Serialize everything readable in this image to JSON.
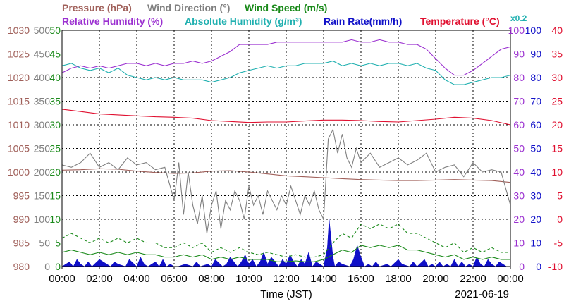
{
  "chart_data": {
    "type": "line",
    "date": "2021-06-19",
    "xlabel": "Time (JST)",
    "x_ticks": [
      "00:00",
      "02:00",
      "04:00",
      "06:00",
      "08:00",
      "10:00",
      "12:00",
      "14:00",
      "16:00",
      "18:00",
      "20:00",
      "22:00",
      "00:00"
    ],
    "x_range_hours": [
      0,
      24
    ],
    "grid": true,
    "header": {
      "row1": [
        {
          "text": "Pressure (hPa)",
          "color": "#a0605a"
        },
        {
          "text": "Wind Direction (°)",
          "color": "#808080"
        },
        {
          "text": "Wind Speed (m/s)",
          "color": "#1a8a1a"
        }
      ],
      "row2": [
        {
          "text": "Relative Humidity (%)",
          "color": "#9b30d0"
        },
        {
          "text": "Absolute Humidity (g/m³)",
          "color": "#20b0b0"
        },
        {
          "text": "Rain Rate(mm/h)",
          "color": "#1010c8"
        },
        {
          "text": "Temperature (°C)",
          "color": "#e01030"
        }
      ],
      "abs_humidity_scale_note": "x0.2"
    },
    "axes": {
      "pressure": {
        "color": "#a0605a",
        "range": [
          980,
          1030
        ],
        "ticks": [
          "1030",
          "1025",
          "1020",
          "1015",
          "1010",
          "1005",
          "1000",
          "995",
          "990",
          "985",
          "980"
        ]
      },
      "wind_direction": {
        "color": "#808080",
        "range": [
          0,
          500
        ],
        "ticks": [
          "500",
          "450",
          "400",
          "350",
          "300",
          "250",
          "200",
          "150",
          "100",
          "50",
          "0"
        ]
      },
      "wind_speed": {
        "color": "#1a8a1a",
        "range": [
          0,
          50
        ],
        "ticks": [
          "50",
          "45",
          "40",
          "35",
          "30",
          "25",
          "20",
          "15",
          "10",
          "5",
          "0"
        ]
      },
      "humidity": {
        "color": "#9b30d0",
        "range": [
          0,
          100
        ],
        "ticks": [
          "100",
          "90",
          "80",
          "70",
          "60",
          "50",
          "40",
          "30",
          "20",
          "10",
          "0"
        ]
      },
      "rain_rate": {
        "color": "#1010c8",
        "range": [
          0,
          100
        ],
        "ticks": [
          "100",
          "90",
          "80",
          "70",
          "60",
          "50",
          "40",
          "30",
          "20",
          "10",
          "0"
        ]
      },
      "temperature": {
        "color": "#e01030",
        "range": [
          -10,
          40
        ],
        "ticks": [
          "40",
          "35",
          "30",
          "25",
          "20",
          "15",
          "10",
          "5",
          "0",
          "-5",
          "-10"
        ]
      }
    },
    "series": [
      {
        "name": "Relative Humidity (%)",
        "axis": "humidity",
        "color": "#9b30d0",
        "style": "line",
        "x": [
          0,
          0.5,
          1,
          1.5,
          2,
          2.5,
          3,
          3.5,
          4,
          4.5,
          5,
          5.5,
          6,
          6.5,
          7,
          7.5,
          8,
          8.5,
          9,
          9.5,
          10,
          10.5,
          11,
          11.5,
          12,
          12.5,
          13,
          13.5,
          14,
          14.5,
          15,
          15.5,
          16,
          16.5,
          17,
          17.5,
          18,
          18.5,
          19,
          19.5,
          20,
          20.5,
          21,
          21.5,
          22,
          22.5,
          23,
          23.5,
          24
        ],
        "y": [
          82,
          84,
          85,
          84,
          85,
          84,
          85,
          86,
          86,
          85,
          86,
          85,
          86,
          86,
          87,
          86,
          87,
          89,
          91,
          94,
          94,
          94,
          94,
          95,
          95,
          95,
          95,
          95,
          95,
          95,
          95,
          96,
          95,
          95,
          96,
          95,
          95,
          94,
          94,
          92,
          88,
          84,
          81,
          81,
          83,
          86,
          89,
          92,
          93
        ]
      },
      {
        "name": "Absolute Humidity (g/m³)",
        "axis": "humidity",
        "color": "#20b0b0",
        "style": "line",
        "x": [
          0,
          0.5,
          1,
          1.5,
          2,
          2.5,
          3,
          3.5,
          4,
          4.5,
          5,
          5.5,
          6,
          6.5,
          7,
          7.5,
          8,
          8.5,
          9,
          9.5,
          10,
          10.5,
          11,
          11.5,
          12,
          12.5,
          13,
          13.5,
          14,
          14.5,
          15,
          15.5,
          16,
          16.5,
          17,
          17.5,
          18,
          18.5,
          19,
          19.5,
          20,
          20.5,
          21,
          21.5,
          22,
          22.5,
          23,
          23.5,
          24
        ],
        "y": [
          85,
          86,
          84,
          83,
          84,
          82,
          84,
          81,
          80,
          79,
          80,
          79,
          80,
          79,
          79,
          79,
          78,
          79,
          80,
          82,
          83,
          84,
          85,
          84,
          85,
          85,
          86,
          86,
          86,
          87,
          85,
          86,
          85,
          86,
          85,
          86,
          86,
          85,
          86,
          84,
          83,
          79,
          77,
          77,
          78,
          79,
          80,
          80,
          81
        ]
      },
      {
        "name": "Temperature (°C)",
        "axis": "temperature",
        "color": "#e01030",
        "style": "line",
        "x": [
          0,
          1,
          2,
          3,
          4,
          5,
          6,
          7,
          8,
          9,
          10,
          11,
          12,
          13,
          14,
          15,
          16,
          17,
          18,
          19,
          20,
          21,
          22,
          23,
          24
        ],
        "y": [
          23.3,
          22.8,
          22.3,
          22.1,
          21.9,
          21.7,
          21.6,
          21.4,
          20.9,
          20.7,
          20.5,
          20.6,
          20.6,
          20.8,
          21.0,
          21.0,
          20.9,
          20.7,
          20.6,
          20.9,
          21.2,
          21.6,
          21.4,
          20.9,
          20.0
        ]
      },
      {
        "name": "Pressure (hPa)",
        "axis": "pressure",
        "color": "#a0605a",
        "style": "line",
        "x": [
          0,
          1,
          2,
          3,
          4,
          5,
          6,
          7,
          8,
          9,
          10,
          11,
          12,
          13,
          14,
          15,
          16,
          17,
          18,
          19,
          20,
          21,
          22,
          23,
          24
        ],
        "y": [
          1000.4,
          1000.5,
          1000.7,
          1000.6,
          1000.2,
          999.9,
          999.7,
          999.8,
          1000.2,
          1000.3,
          1000.0,
          999.6,
          999.2,
          999.0,
          998.8,
          998.6,
          998.4,
          998.3,
          998.2,
          998.2,
          998.3,
          998.4,
          998.3,
          998.2,
          997.8
        ]
      },
      {
        "name": "Wind Direction (°)",
        "axis": "wind_direction",
        "color": "#808080",
        "style": "line",
        "x": [
          0,
          0.5,
          1,
          1.5,
          2,
          2.5,
          3,
          3.5,
          4,
          4.5,
          5,
          5.5,
          6,
          6.25,
          6.5,
          6.75,
          7,
          7.25,
          7.5,
          7.75,
          8,
          8.25,
          8.5,
          8.75,
          9,
          9.25,
          9.5,
          9.75,
          10,
          10.25,
          10.5,
          10.75,
          11,
          11.25,
          11.5,
          11.75,
          12,
          12.25,
          12.5,
          12.75,
          13,
          13.25,
          13.5,
          13.75,
          14,
          14.25,
          14.5,
          14.75,
          15,
          15.25,
          15.5,
          15.75,
          16,
          16.5,
          17,
          17.5,
          18,
          18.5,
          19,
          19.5,
          20,
          20.5,
          21,
          21.5,
          22,
          22.5,
          23,
          23.5,
          24
        ],
        "y": [
          215,
          210,
          220,
          240,
          210,
          220,
          205,
          230,
          215,
          220,
          205,
          210,
          140,
          220,
          110,
          200,
          130,
          90,
          150,
          70,
          130,
          160,
          80,
          140,
          120,
          160,
          140,
          100,
          170,
          130,
          150,
          110,
          160,
          140,
          120,
          150,
          130,
          170,
          140,
          110,
          150,
          130,
          160,
          120,
          100,
          270,
          290,
          240,
          280,
          230,
          210,
          250,
          220,
          240,
          210,
          220,
          230,
          215,
          225,
          240,
          200,
          210,
          215,
          190,
          220,
          200,
          205,
          200,
          130
        ]
      },
      {
        "name": "Wind Speed (m/s) dashed",
        "axis": "wind_speed",
        "color": "#1a8a1a",
        "style": "dashed",
        "x": [
          0,
          0.5,
          1,
          1.5,
          2,
          2.5,
          3,
          3.5,
          4,
          4.5,
          5,
          5.5,
          6,
          6.5,
          7,
          7.5,
          8,
          8.5,
          9,
          9.5,
          10,
          10.5,
          11,
          11.5,
          12,
          12.5,
          13,
          13.5,
          14,
          14.5,
          15,
          15.5,
          16,
          16.5,
          17,
          17.5,
          18,
          18.5,
          19,
          19.5,
          20,
          20.5,
          21,
          21.5,
          22,
          22.5,
          23,
          23.5,
          24
        ],
        "y": [
          6,
          7,
          6,
          5,
          6,
          5,
          6,
          5,
          6,
          5,
          5,
          4,
          4,
          5,
          4,
          5,
          3,
          4,
          3,
          4,
          3,
          2.5,
          3,
          2.5,
          2,
          2.5,
          2,
          2,
          2.5,
          5,
          7,
          6,
          9,
          8,
          9,
          8,
          9,
          7,
          7,
          6,
          5,
          4,
          5,
          3,
          4,
          3,
          4,
          3,
          3
        ]
      },
      {
        "name": "Wind Speed (m/s)",
        "axis": "wind_speed",
        "color": "#1a8a1a",
        "style": "line",
        "x": [
          0,
          0.5,
          1,
          1.5,
          2,
          2.5,
          3,
          3.5,
          4,
          4.5,
          5,
          5.5,
          6,
          6.5,
          7,
          7.5,
          8,
          8.5,
          9,
          9.5,
          10,
          10.5,
          11,
          11.5,
          12,
          12.5,
          13,
          13.5,
          14,
          14.5,
          15,
          15.5,
          16,
          16.5,
          17,
          17.5,
          18,
          18.5,
          19,
          19.5,
          20,
          20.5,
          21,
          21.5,
          22,
          22.5,
          23,
          23.5,
          24
        ],
        "y": [
          3,
          3.5,
          3,
          2.5,
          3,
          2.5,
          3,
          2.5,
          3,
          2.5,
          2.5,
          2,
          2,
          2.5,
          2,
          2.5,
          1.5,
          2,
          1.5,
          2,
          1.5,
          1.5,
          1.5,
          1,
          1,
          1.2,
          1,
          1,
          1.5,
          2.5,
          3.5,
          3,
          4.5,
          4,
          4.5,
          4,
          4.5,
          3.5,
          3.5,
          3,
          2.5,
          2,
          2.5,
          1.5,
          2,
          1.5,
          2,
          1.5,
          1.5
        ]
      },
      {
        "name": "Rain Rate(mm/h)",
        "axis": "rain_rate",
        "color": "#1010c8",
        "style": "area",
        "x": [
          0,
          0.4,
          0.6,
          0.8,
          1.0,
          1.2,
          1.4,
          1.6,
          2.0,
          2.6,
          2.8,
          3.0,
          3.4,
          3.6,
          4.0,
          4.2,
          4.4,
          4.6,
          5.0,
          5.2,
          5.4,
          5.6,
          5.8,
          6.0,
          6.2,
          6.6,
          7.0,
          7.2,
          7.4,
          7.8,
          8.0,
          8.2,
          8.6,
          8.8,
          9.0,
          9.4,
          9.6,
          9.8,
          10.0,
          10.2,
          10.4,
          10.6,
          10.8,
          11.0,
          11.2,
          11.4,
          11.6,
          11.8,
          12.0,
          12.2,
          12.4,
          12.6,
          12.8,
          13.0,
          13.2,
          13.4,
          13.6,
          13.8,
          14.0,
          14.2,
          14.3,
          14.4,
          14.5,
          14.6,
          14.8,
          15.0,
          15.4,
          15.6,
          15.8,
          16.0,
          16.2,
          16.4,
          16.6,
          16.8,
          17.0,
          17.4,
          17.6,
          18.0,
          18.2,
          18.6,
          18.8,
          19.0,
          19.4,
          19.6,
          19.8,
          20.0,
          20.2,
          20.4,
          20.6,
          20.8,
          21.0,
          21.2,
          21.4,
          21.6,
          21.8,
          22.0,
          22.2,
          22.4,
          22.6,
          22.8,
          23.0,
          23.2,
          23.4,
          23.6,
          23.8,
          24.0
        ],
        "y": [
          0,
          2,
          0,
          3,
          1,
          0,
          2,
          0,
          3,
          0,
          2,
          1,
          0,
          3,
          0,
          4,
          1,
          0,
          2,
          0,
          3,
          0,
          1,
          0,
          0,
          1,
          0,
          2,
          0,
          1,
          0,
          3,
          0,
          1,
          4,
          0,
          2,
          5,
          1,
          3,
          0,
          2,
          6,
          1,
          4,
          2,
          0,
          3,
          1,
          5,
          2,
          0,
          3,
          1,
          6,
          0,
          2,
          1,
          0,
          8,
          20,
          12,
          4,
          0,
          2,
          1,
          0,
          3,
          9,
          4,
          0,
          1,
          0,
          2,
          0,
          1,
          0,
          3,
          1,
          0,
          2,
          0,
          3,
          0,
          1,
          0,
          2,
          0,
          1,
          0,
          3,
          0,
          2,
          0,
          1,
          0,
          4,
          1,
          0,
          3,
          1,
          0,
          2,
          1,
          0,
          0
        ]
      }
    ]
  }
}
